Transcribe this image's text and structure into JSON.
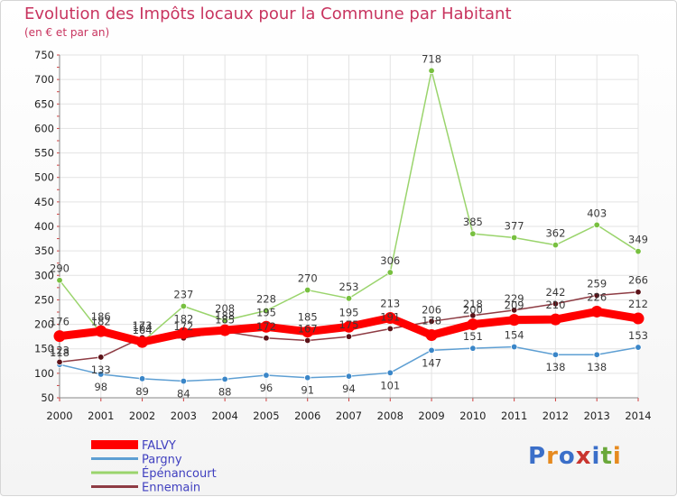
{
  "header": {
    "title": "Evolution des Impôts locaux pour la Commune par Habitant",
    "subtitle": "(en € et par an)"
  },
  "logo": {
    "text": "Proxiti"
  },
  "chart_data": {
    "type": "line",
    "title": "Evolution des Impôts locaux pour la Commune par Habitant",
    "subtitle": "(en € et par an)",
    "xlabel": "",
    "ylabel": "",
    "x": [
      2000,
      2001,
      2002,
      2003,
      2004,
      2005,
      2006,
      2007,
      2008,
      2009,
      2010,
      2011,
      2012,
      2013,
      2014
    ],
    "yticks": [
      50,
      100,
      150,
      200,
      250,
      300,
      350,
      400,
      450,
      500,
      550,
      600,
      650,
      700,
      750
    ],
    "ylim": [
      50,
      750
    ],
    "grid": true,
    "legend_position": "bottom-left",
    "series": [
      {
        "name": "FALVY",
        "color": "#ff0000",
        "markerColor": "#ff0000",
        "style": "thick",
        "values": [
          176,
          186,
          164,
          182,
          188,
          195,
          185,
          195,
          213,
          178,
          200,
          209,
          210,
          226,
          212
        ],
        "labels": [
          "176",
          "186",
          "164",
          "182",
          "188",
          "195",
          "185",
          "195",
          "213",
          "178",
          "200",
          "209",
          "210",
          "226",
          "212"
        ]
      },
      {
        "name": "Pargny",
        "color": "#5e9fd3",
        "markerColor": "#3a86c8",
        "style": "thin",
        "values": [
          118,
          98,
          89,
          84,
          88,
          96,
          91,
          94,
          101,
          147,
          151,
          154,
          138,
          138,
          153
        ],
        "labels": [
          "118",
          "98",
          "89",
          "84",
          "88",
          "96",
          "91",
          "94",
          "101",
          "147",
          "151",
          "154",
          "138",
          "138",
          "153"
        ]
      },
      {
        "name": "Épénancourt",
        "color": "#9ad46c",
        "markerColor": "#78c040",
        "style": "thin",
        "values": [
          290,
          182,
          164,
          237,
          208,
          228,
          270,
          253,
          306,
          718,
          385,
          377,
          362,
          403,
          349
        ],
        "labels": [
          "290",
          "182",
          "164",
          "237",
          "208",
          "228",
          "270",
          "253",
          "306",
          "718",
          "385",
          "377",
          "362",
          "403",
          "349"
        ]
      },
      {
        "name": "Ennemain",
        "color": "#8e3c44",
        "markerColor": "#5c1218",
        "style": "thin",
        "values": [
          123,
          133,
          173,
          172,
          185,
          172,
          167,
          175,
          191,
          206,
          218,
          229,
          242,
          259,
          266
        ],
        "labels": [
          "123",
          "133",
          "173",
          "172",
          "185",
          "172",
          "167",
          "175",
          "191",
          "206",
          "218",
          "229",
          "242",
          "259",
          "266"
        ]
      }
    ]
  }
}
